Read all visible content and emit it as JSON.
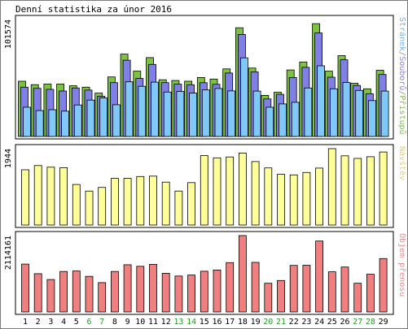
{
  "chart_data": {
    "type": "bar",
    "title": "Denní statistika za únor 2016",
    "x": [
      "1",
      "2",
      "3",
      "4",
      "5",
      "6",
      "7",
      "8",
      "9",
      "10",
      "11",
      "12",
      "13",
      "14",
      "15",
      "16",
      "17",
      "18",
      "19",
      "20",
      "21",
      "22",
      "23",
      "24",
      "25",
      "26",
      "27",
      "28",
      "29"
    ],
    "weekend_days": [
      "6",
      "7",
      "13",
      "14",
      "20",
      "21",
      "27",
      "28"
    ],
    "panels": [
      {
        "id": "top",
        "ymax_label": "101574",
        "ylim": [
          0,
          101574
        ],
        "vertical_label_parts": [
          {
            "text": "Stránek",
            "color": "#6cb4f5"
          },
          {
            "text": "/",
            "color": "#8c8c8c"
          },
          {
            "text": "Souborů",
            "color": "#8c82e6"
          },
          {
            "text": "/",
            "color": "#8c8c8c"
          },
          {
            "text": "Přístupů",
            "color": "#7dc24a"
          }
        ],
        "series": [
          {
            "name": "Přístupů",
            "color": "#7dc242",
            "values": [
              48000,
              45000,
              45500,
              45500,
              44000,
              42800,
              37700,
              51700,
              71500,
              56700,
              68500,
              49200,
              48600,
              48000,
              51200,
              49900,
              58700,
              94400,
              59400,
              35700,
              38400,
              57800,
              64700,
              98000,
              56700,
              70200,
              46200,
              41400,
              57500
            ]
          },
          {
            "name": "Souborů",
            "color": "#7f7fe6",
            "values": [
              42800,
              41800,
              40900,
              39500,
              42100,
              40300,
              34900,
              46800,
              66200,
              50400,
              62600,
              46800,
              45400,
              44900,
              46700,
              45300,
              55100,
              88600,
              56100,
              32600,
              36600,
              51200,
              60000,
              89900,
              51500,
              66600,
              44300,
              37100,
              53800
            ]
          },
          {
            "name": "Stránek",
            "color": "#80c8f8",
            "values": [
              25400,
              22500,
              23200,
              22000,
              27400,
              31600,
              33500,
              27600,
              47500,
              43600,
              47200,
              38600,
              39100,
              37700,
              40400,
              41700,
              39600,
              68300,
              39400,
              25400,
              28300,
              29700,
              42100,
              61400,
              41400,
              46900,
              40000,
              31200,
              39400
            ]
          }
        ]
      },
      {
        "id": "mid",
        "ymax_label": "1944",
        "ylim": [
          0,
          1944
        ],
        "vertical_label_parts": [
          {
            "text": "Návštěv",
            "color": "#e0d07a"
          }
        ],
        "series": [
          {
            "name": "Návštěv",
            "color": "#ffff99",
            "values": [
              1406,
              1513,
              1473,
              1461,
              1031,
              864,
              958,
              1187,
              1187,
              1234,
              1246,
              1092,
              864,
              1080,
              1768,
              1710,
              1733,
              1833,
              1616,
              1454,
              1290,
              1275,
              1338,
              1450,
              1944,
              1763,
              1695,
              1739,
              1860
            ]
          }
        ]
      },
      {
        "id": "bot",
        "ymax_label": "2114161",
        "ylim": [
          0,
          2114161
        ],
        "vertical_label_parts": [
          {
            "text": "Objem přenosu",
            "color": "#ee8a8a"
          }
        ],
        "series": [
          {
            "name": "Objem přenosu",
            "color": "#f08080",
            "values": [
              1325600,
              1059500,
              897200,
              1120800,
              1133600,
              985600,
              811500,
              1120800,
              1306600,
              1264700,
              1317600,
              1070800,
              994200,
              1021800,
              1127800,
              1160500,
              1365400,
              2114161,
              1372100,
              794500,
              870100,
              1287700,
              1294300,
              1964100,
              1111400,
              1244800,
              792900,
              1044600,
              1478300
            ]
          }
        ]
      }
    ]
  }
}
